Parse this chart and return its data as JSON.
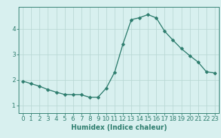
{
  "x": [
    0,
    1,
    2,
    3,
    4,
    5,
    6,
    7,
    8,
    9,
    10,
    11,
    12,
    13,
    14,
    15,
    16,
    17,
    18,
    19,
    20,
    21,
    22,
    23
  ],
  "y": [
    1.95,
    1.85,
    1.75,
    1.62,
    1.52,
    1.43,
    1.42,
    1.42,
    1.32,
    1.32,
    1.68,
    2.3,
    3.4,
    4.35,
    4.43,
    4.55,
    4.42,
    3.9,
    3.55,
    3.22,
    2.95,
    2.7,
    2.32,
    2.27
  ],
  "line_color": "#2e7d6e",
  "marker": "D",
  "marker_size": 2.5,
  "bg_color": "#d8f0ef",
  "grid_color": "#b8d8d4",
  "xlabel": "Humidex (Indice chaleur)",
  "xlim": [
    -0.5,
    23.5
  ],
  "ylim": [
    0.7,
    4.85
  ],
  "yticks": [
    1,
    2,
    3,
    4
  ],
  "xticks": [
    0,
    1,
    2,
    3,
    4,
    5,
    6,
    7,
    8,
    9,
    10,
    11,
    12,
    13,
    14,
    15,
    16,
    17,
    18,
    19,
    20,
    21,
    22,
    23
  ],
  "xlabel_fontsize": 7,
  "tick_labelsize": 6.5
}
